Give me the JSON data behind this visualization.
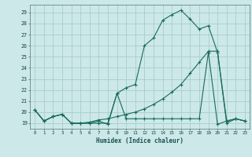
{
  "xlabel": "Humidex (Indice chaleur)",
  "bg_color": "#cce8e8",
  "grid_color": "#aacccc",
  "line_color": "#1a6b5a",
  "xlim": [
    -0.5,
    23.5
  ],
  "ylim": [
    18.5,
    29.7
  ],
  "yticks": [
    19,
    20,
    21,
    22,
    23,
    24,
    25,
    26,
    27,
    28,
    29
  ],
  "xticks": [
    0,
    1,
    2,
    3,
    4,
    5,
    6,
    7,
    8,
    9,
    10,
    11,
    12,
    13,
    14,
    15,
    16,
    17,
    18,
    19,
    20,
    21,
    22,
    23
  ],
  "series": [
    {
      "x": [
        0,
        1,
        2,
        3,
        4,
        5,
        6,
        7,
        8,
        9,
        10,
        11,
        12,
        13,
        14,
        15,
        16,
        17,
        18,
        19,
        20,
        21,
        22,
        23
      ],
      "y": [
        20.2,
        19.2,
        19.6,
        19.8,
        19.0,
        19.0,
        19.0,
        19.2,
        18.9,
        21.7,
        22.2,
        22.5,
        26.0,
        26.7,
        28.3,
        28.8,
        29.2,
        28.4,
        27.5,
        27.8,
        25.4,
        19.0,
        19.4,
        19.2
      ]
    },
    {
      "x": [
        0,
        1,
        2,
        3,
        4,
        5,
        6,
        7,
        8,
        9,
        10,
        11,
        12,
        13,
        14,
        15,
        16,
        17,
        18,
        19,
        20,
        21,
        22,
        23
      ],
      "y": [
        20.2,
        19.2,
        19.6,
        19.8,
        19.0,
        19.0,
        19.1,
        19.3,
        19.4,
        19.6,
        19.8,
        20.0,
        20.3,
        20.7,
        21.2,
        21.8,
        22.5,
        23.5,
        24.5,
        25.5,
        25.5,
        19.2,
        19.4,
        19.2
      ]
    },
    {
      "x": [
        0,
        1,
        2,
        3,
        4,
        5,
        6,
        7,
        8,
        9,
        10,
        11,
        12,
        13,
        14,
        15,
        16,
        17,
        18,
        19,
        20,
        21,
        22,
        23
      ],
      "y": [
        20.2,
        19.2,
        19.6,
        19.8,
        19.0,
        19.0,
        19.0,
        19.0,
        19.0,
        21.7,
        19.4,
        19.4,
        19.4,
        19.4,
        19.4,
        19.4,
        19.4,
        19.4,
        19.4,
        25.4,
        18.9,
        19.2,
        19.4,
        19.2
      ]
    }
  ]
}
